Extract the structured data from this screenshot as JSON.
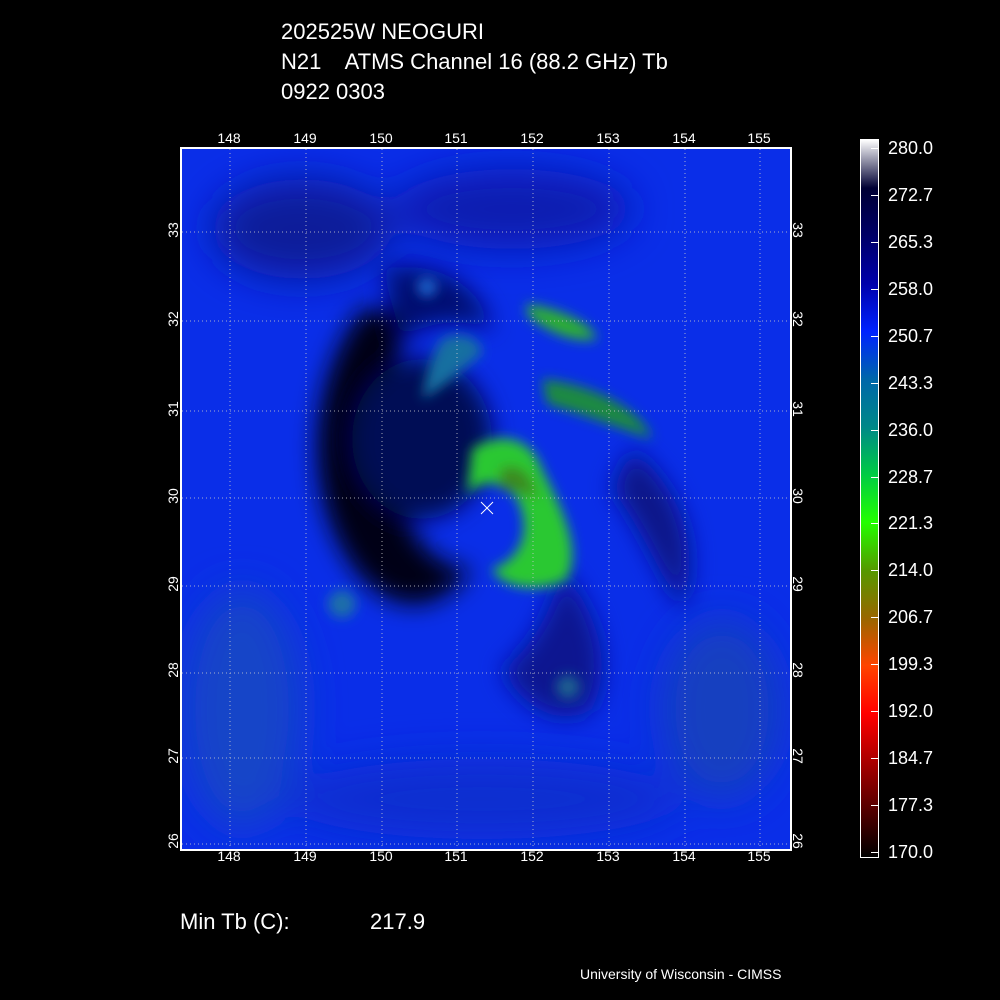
{
  "header": {
    "storm": "202525W NEOGURI",
    "product": "N21    ATMS Channel 16 (88.2 GHz) Tb",
    "datetime": "0922 0303"
  },
  "map": {
    "lon_ticks": [
      "148",
      "149",
      "150",
      "151",
      "152",
      "153",
      "154",
      "155"
    ],
    "lat_ticks": [
      "33",
      "32",
      "31",
      "30",
      "29",
      "28",
      "27",
      "26"
    ],
    "center_marker": "x-marker"
  },
  "colorbar": {
    "labels": [
      "280.0",
      "272.7",
      "265.3",
      "258.0",
      "250.7",
      "243.3",
      "236.0",
      "228.7",
      "221.3",
      "214.0",
      "206.7",
      "199.3",
      "192.0",
      "184.7",
      "177.3",
      "170.0"
    ],
    "colors": [
      "#ffffff",
      "#000033",
      "#000066",
      "#0000aa",
      "#0022ff",
      "#0066aa",
      "#008888",
      "#00cc44",
      "#22ff00",
      "#559900",
      "#996600",
      "#ff4400",
      "#ff0000",
      "#aa0000",
      "#550000",
      "#000000"
    ]
  },
  "stats": {
    "min_tb_label": "Min Tb (C):",
    "min_tb_value": "217.9"
  },
  "credit": "University of Wisconsin - CIMSS"
}
